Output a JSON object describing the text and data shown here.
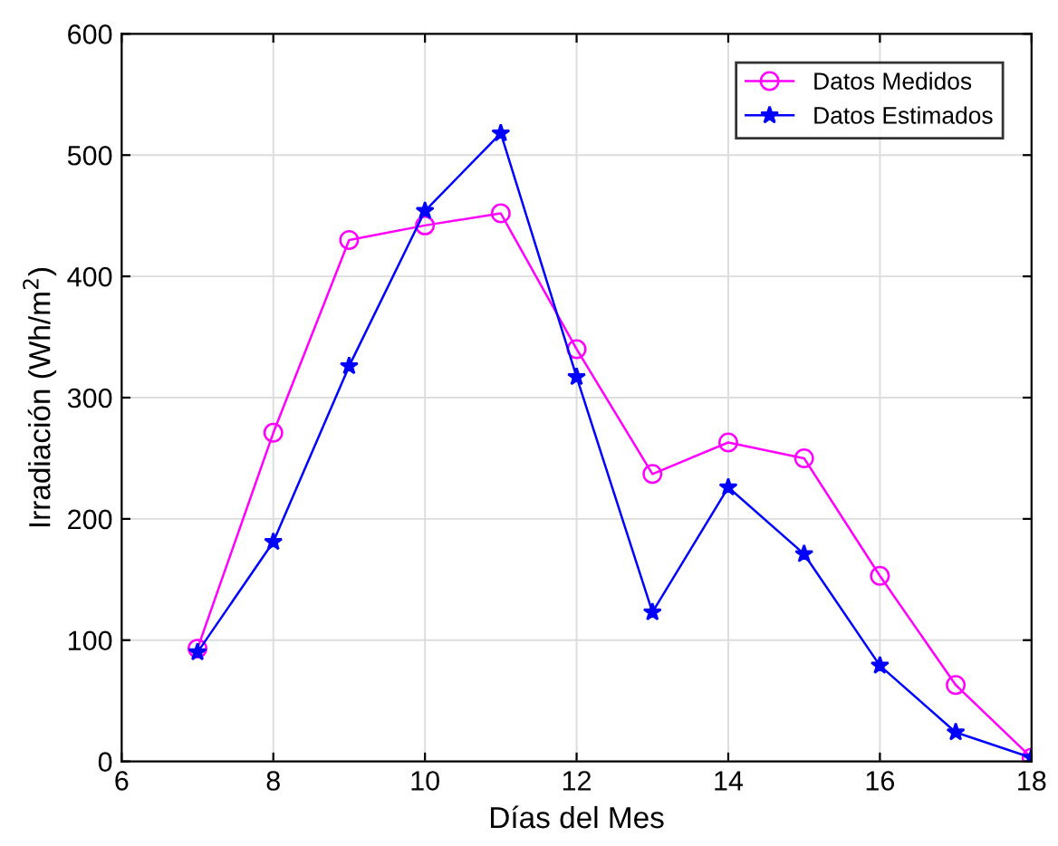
{
  "chart_data": {
    "type": "line",
    "xlabel": "Días del Mes",
    "ylabel": "Irradiación (Wh/m$^{2}$)",
    "x": [
      7,
      8,
      9,
      10,
      11,
      12,
      13,
      14,
      15,
      16,
      17,
      18
    ],
    "series": [
      {
        "name": "Datos Medidos",
        "color": "#ff00ff",
        "marker": "circle",
        "values": [
          93,
          271,
          430,
          442,
          452,
          340,
          237,
          263,
          250,
          153,
          63,
          3
        ]
      },
      {
        "name": "Datos Estimados",
        "color": "#0000ff",
        "marker": "star",
        "values": [
          90,
          181,
          326,
          454,
          518,
          317,
          123,
          226,
          171,
          79,
          24,
          3
        ]
      }
    ],
    "xlim": [
      6,
      18
    ],
    "xticks": [
      6,
      8,
      10,
      12,
      14,
      16,
      18
    ],
    "ylim": [
      0,
      600
    ],
    "yticks": [
      0,
      100,
      200,
      300,
      400,
      500,
      600
    ],
    "grid": true,
    "legend": "top right",
    "line_style": "solid"
  }
}
